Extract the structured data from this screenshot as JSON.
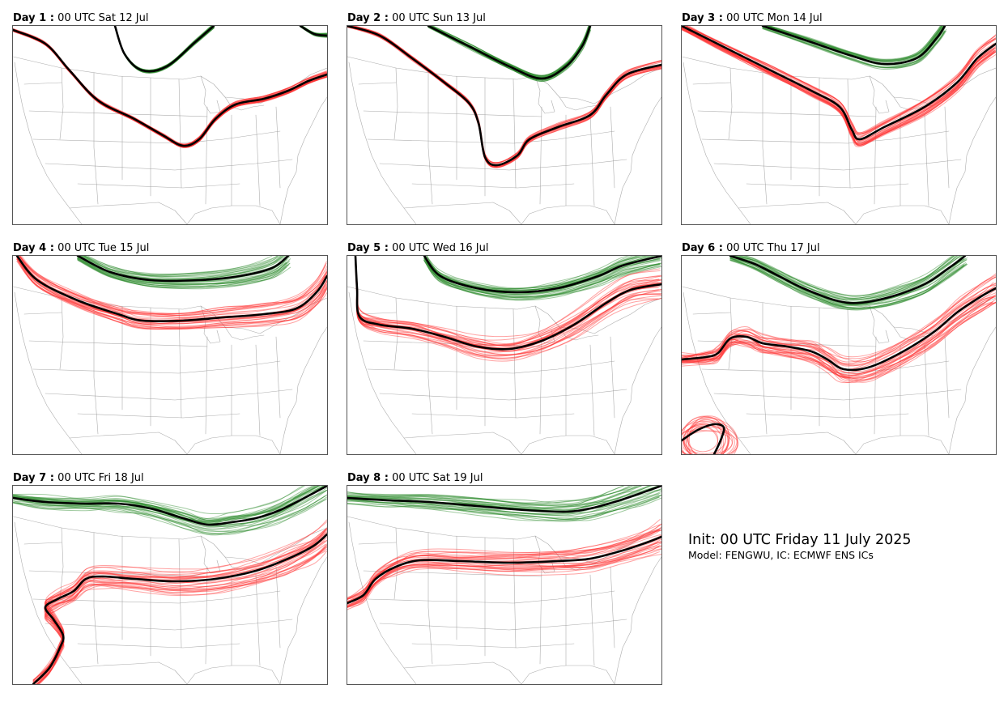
{
  "panels": [
    {
      "day": "Day 1 :",
      "time": "00 UTC Sat 12 Jul"
    },
    {
      "day": "Day 2 :",
      "time": "00 UTC Sun 13 Jul"
    },
    {
      "day": "Day 3 :",
      "time": "00 UTC Mon 14 Jul"
    },
    {
      "day": "Day 4 :",
      "time": "00 UTC Tue 15 Jul"
    },
    {
      "day": "Day 5 :",
      "time": "00 UTC Wed 16 Jul"
    },
    {
      "day": "Day 6 :",
      "time": "00 UTC Thu 17 Jul"
    },
    {
      "day": "Day 7 :",
      "time": "00 UTC Fri 18 Jul"
    },
    {
      "day": "Day 8 :",
      "time": "00 UTC Sat 19 Jul"
    }
  ],
  "info": {
    "init": "Init: 00 UTC Friday 11 July 2025",
    "model": "Model: FENGWU, IC: ECMWF ENS ICs"
  },
  "colors": {
    "green_members": "#2e8b2e",
    "red_members": "#ff3333",
    "mean_contour": "#000000",
    "map_lines": "#999999"
  }
}
